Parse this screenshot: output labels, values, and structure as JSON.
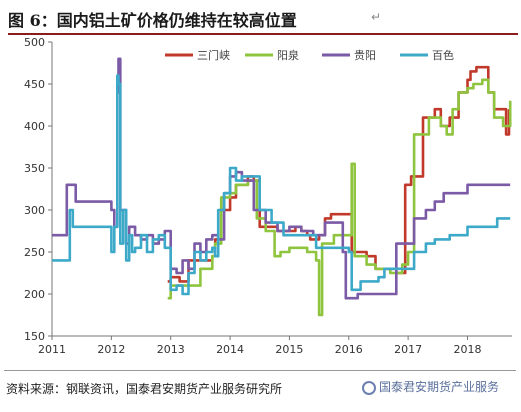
{
  "title": "图 6：国内铝土矿价格仍维持在较高位置",
  "title_mark": "↵",
  "source": "资料来源：钢联资讯，国泰君安期货产业服务研究所",
  "watermark": "国泰君安期货产业服务",
  "chart_data": {
    "type": "line",
    "title": "",
    "xlabel": "",
    "ylabel": "",
    "xlim": [
      2011.0,
      2018.75
    ],
    "ylim": [
      150,
      500
    ],
    "xticks": [
      "2011",
      "2012",
      "2013",
      "2014",
      "2015",
      "2016",
      "2017",
      "2018"
    ],
    "yticks": [
      "150",
      "200",
      "250",
      "300",
      "350",
      "400",
      "450",
      "500"
    ],
    "grid": false,
    "legend_position": "top-right",
    "series": [
      {
        "name": "三门峡",
        "color": "#c0392b",
        "x": [
          2012.95,
          2013.0,
          2013.15,
          2013.3,
          2013.5,
          2013.7,
          2013.75,
          2013.85,
          2014.0,
          2014.1,
          2014.3,
          2014.4,
          2014.5,
          2014.7,
          2014.8,
          2015.0,
          2015.1,
          2015.2,
          2015.3,
          2015.35,
          2015.5,
          2015.6,
          2015.7,
          2016.0,
          2016.05,
          2016.3,
          2016.45,
          2016.55,
          2016.7,
          2016.8,
          2016.85,
          2016.95,
          2017.05,
          2017.25,
          2017.45,
          2017.55,
          2017.7,
          2017.85,
          2018.0,
          2018.05,
          2018.15,
          2018.35,
          2018.45,
          2018.55,
          2018.65,
          2018.7
        ],
        "y": [
          215,
          220,
          215,
          240,
          240,
          245,
          265,
          300,
          315,
          330,
          340,
          335,
          280,
          280,
          275,
          275,
          280,
          275,
          270,
          265,
          270,
          290,
          295,
          295,
          250,
          245,
          230,
          230,
          230,
          225,
          225,
          330,
          340,
          410,
          420,
          400,
          410,
          440,
          455,
          465,
          470,
          440,
          420,
          420,
          390,
          420
        ]
      },
      {
        "name": "阳泉",
        "color": "#8fc43e",
        "x": [
          2012.95,
          2013.0,
          2013.3,
          2013.5,
          2013.7,
          2013.75,
          2013.85,
          2014.0,
          2014.1,
          2014.3,
          2014.45,
          2014.6,
          2014.75,
          2014.85,
          2015.0,
          2015.15,
          2015.3,
          2015.45,
          2015.5,
          2015.55,
          2015.6,
          2015.75,
          2016.0,
          2016.05,
          2016.1,
          2016.3,
          2016.45,
          2016.6,
          2016.7,
          2016.8,
          2016.9,
          2017.0,
          2017.1,
          2017.35,
          2017.55,
          2017.65,
          2017.75,
          2017.85,
          2018.0,
          2018.1,
          2018.25,
          2018.35,
          2018.45,
          2018.6,
          2018.68,
          2018.72
        ],
        "y": [
          195,
          210,
          210,
          230,
          245,
          260,
          315,
          320,
          330,
          335,
          290,
          275,
          245,
          250,
          255,
          255,
          250,
          240,
          175,
          260,
          260,
          270,
          270,
          355,
          245,
          235,
          230,
          230,
          225,
          225,
          235,
          250,
          390,
          410,
          400,
          390,
          420,
          440,
          445,
          450,
          455,
          440,
          410,
          400,
          400,
          430
        ]
      },
      {
        "name": "贵阳",
        "color": "#7b5aa6",
        "x": [
          2011.0,
          2011.2,
          2011.25,
          2011.35,
          2011.4,
          2011.9,
          2012.0,
          2012.05,
          2012.1,
          2012.12,
          2012.15,
          2012.25,
          2012.3,
          2012.4,
          2012.5,
          2012.6,
          2012.7,
          2012.8,
          2012.9,
          2013.0,
          2013.1,
          2013.2,
          2013.3,
          2013.4,
          2013.5,
          2013.6,
          2013.7,
          2013.8,
          2013.9,
          2014.0,
          2014.1,
          2014.2,
          2014.4,
          2014.6,
          2014.8,
          2015.0,
          2015.2,
          2015.4,
          2015.6,
          2015.8,
          2015.9,
          2015.95,
          2016.15,
          2016.3,
          2016.5,
          2016.6,
          2016.8,
          2017.0,
          2017.1,
          2017.3,
          2017.45,
          2017.6,
          2018.0,
          2018.5,
          2018.72
        ],
        "y": [
          270,
          270,
          330,
          330,
          310,
          310,
          300,
          280,
          440,
          480,
          300,
          260,
          280,
          270,
          265,
          270,
          260,
          265,
          275,
          230,
          225,
          240,
          230,
          260,
          250,
          265,
          270,
          265,
          320,
          340,
          345,
          335,
          300,
          285,
          275,
          280,
          275,
          270,
          285,
          285,
          250,
          195,
          200,
          200,
          200,
          200,
          260,
          260,
          290,
          300,
          310,
          320,
          330,
          330,
          330
        ]
      },
      {
        "name": "百色",
        "color": "#3da9c9",
        "x": [
          2011.0,
          2011.25,
          2011.3,
          2011.35,
          2011.9,
          2012.0,
          2012.05,
          2012.1,
          2012.12,
          2012.15,
          2012.2,
          2012.25,
          2012.3,
          2012.35,
          2012.4,
          2012.5,
          2012.6,
          2012.7,
          2012.8,
          2012.9,
          2013.0,
          2013.1,
          2013.2,
          2013.3,
          2013.4,
          2013.5,
          2013.6,
          2013.7,
          2013.75,
          2013.8,
          2013.9,
          2014.0,
          2014.1,
          2014.2,
          2014.3,
          2014.5,
          2014.7,
          2014.9,
          2015.1,
          2015.3,
          2015.45,
          2015.7,
          2016.0,
          2016.05,
          2016.2,
          2016.5,
          2016.6,
          2016.8,
          2017.0,
          2017.1,
          2017.3,
          2017.45,
          2017.7,
          2018.0,
          2018.5,
          2018.72
        ],
        "y": [
          240,
          240,
          300,
          280,
          280,
          250,
          280,
          460,
          450,
          260,
          300,
          240,
          270,
          250,
          255,
          270,
          250,
          265,
          270,
          255,
          205,
          210,
          200,
          225,
          250,
          240,
          250,
          255,
          245,
          300,
          320,
          350,
          335,
          340,
          340,
          300,
          285,
          270,
          270,
          270,
          255,
          255,
          250,
          205,
          215,
          220,
          230,
          230,
          230,
          250,
          260,
          265,
          270,
          280,
          290,
          290
        ]
      }
    ]
  }
}
